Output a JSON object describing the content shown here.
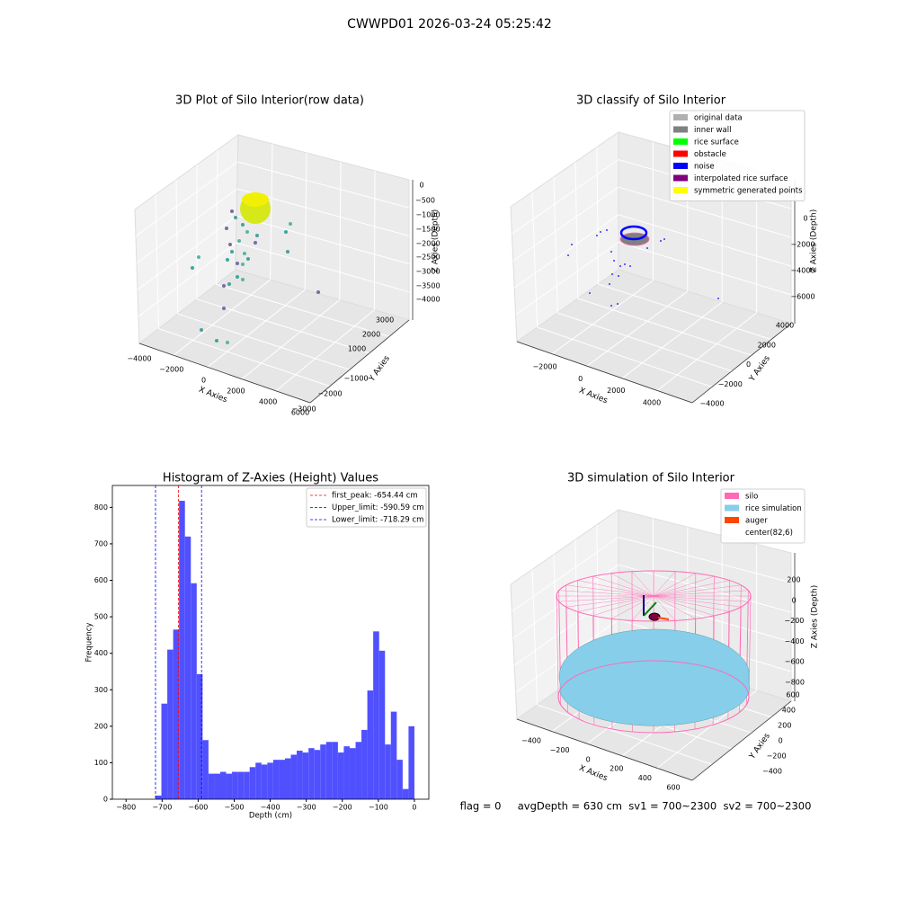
{
  "title": "CWWPD01 2026-03-24 05:25:42",
  "plot3d_raw": {
    "title": "3D Plot of Silo Interior(row data)",
    "xlabel": "X Axies",
    "ylabel": "Y Axies",
    "zlabel": "Z Axies (Depth)",
    "xticks": [
      "−4000",
      "−2000",
      "0",
      "2000",
      "4000",
      "6000"
    ],
    "yticks": [
      "−3000",
      "−2000",
      "−1000",
      "1000",
      "2000",
      "3000"
    ],
    "zticks": [
      "0",
      "−500",
      "−1000",
      "−1500",
      "−2000",
      "−2500",
      "−3000",
      "−3500",
      "−4000"
    ]
  },
  "plot3d_classify": {
    "title": "3D classify of Silo Interior",
    "xlabel": "X Axies",
    "ylabel": "Y Axies",
    "zlabel": "Z Axies (Depth)",
    "xticks": [
      "−2000",
      "0",
      "2000",
      "4000"
    ],
    "yticks": [
      "−4000",
      "−2000",
      "0",
      "2000",
      "4000"
    ],
    "zticks": [
      "0",
      "−2000",
      "−4000",
      "−6000"
    ],
    "legend": [
      {
        "name": "original data",
        "color": "#b0b0b0"
      },
      {
        "name": "inner wall",
        "color": "#808080"
      },
      {
        "name": "rice surface",
        "color": "#00ff00"
      },
      {
        "name": "obstacle",
        "color": "#ff0000"
      },
      {
        "name": "noise",
        "color": "#0000ff"
      },
      {
        "name": "interpolated rice surface",
        "color": "#800080"
      },
      {
        "name": "symmetric generated points",
        "color": "#ffff00"
      }
    ]
  },
  "chart_data": {
    "type": "histogram",
    "title": "Histogram of Z-Axies (Height) Values",
    "xlabel": "Depth (cm)",
    "ylabel": "Frequency",
    "color": "#5050ff",
    "bins": [
      -718.3,
      -702.0,
      -685.6,
      -669.3,
      -653.0,
      -636.7,
      -620.3,
      -604.0,
      -587.7,
      -571.4,
      -555.0,
      -538.7,
      -522.4,
      -506.1,
      -489.7,
      -473.4,
      -457.1,
      -440.8,
      -424.4,
      -408.1,
      -391.8,
      -375.5,
      -359.1,
      -342.8,
      -326.5,
      -310.2,
      -293.8,
      -277.5,
      -261.2,
      -244.9,
      -228.5,
      -212.2,
      -195.9,
      -179.6,
      -163.2,
      -146.9,
      -130.6,
      -114.3,
      -97.9,
      -81.6,
      -65.3,
      -49.0,
      -32.6,
      -16.3,
      0
    ],
    "values": [
      10,
      262,
      410,
      465,
      818,
      720,
      592,
      343,
      162,
      70,
      70,
      75,
      70,
      75,
      75,
      75,
      88,
      100,
      95,
      100,
      108,
      108,
      112,
      122,
      133,
      128,
      140,
      135,
      150,
      157,
      157,
      128,
      145,
      140,
      157,
      190,
      298,
      460,
      407,
      150,
      240,
      108,
      28,
      200
    ],
    "reference_lines": [
      {
        "name": "first_peak: -654.44 cm",
        "value": -654.44,
        "color": "#ff0000"
      },
      {
        "name": "Upper_limit: -590.59 cm",
        "value": -590.59,
        "color": "#0000ff"
      },
      {
        "name": "Lower_limit: -718.29 cm",
        "value": -718.29,
        "color": "#0000ff"
      }
    ],
    "xlim": [
      -838,
      40
    ],
    "ylim": [
      0,
      860
    ],
    "xticks": [
      {
        "value": -800,
        "label": "−800"
      },
      {
        "value": -700,
        "label": "−700"
      },
      {
        "value": -600,
        "label": "−600"
      },
      {
        "value": -500,
        "label": "−500"
      },
      {
        "value": -400,
        "label": "−400"
      },
      {
        "value": -300,
        "label": "−300"
      },
      {
        "value": -200,
        "label": "−200"
      },
      {
        "value": -100,
        "label": "−100"
      },
      0
    ],
    "yticks": [
      0,
      100,
      200,
      300,
      400,
      500,
      600,
      700,
      800
    ],
    "legend": "upper right"
  },
  "plot3d_sim": {
    "title": "3D simulation of Silo Interior",
    "xlabel": "X Axies",
    "ylabel": "Y Axies",
    "zlabel": "Z Axies (Depth)",
    "xticks": [
      "−400",
      "−200",
      "0",
      "200",
      "400",
      "600"
    ],
    "yticks": [
      "−400",
      "−200",
      "0",
      "200",
      "400",
      "600"
    ],
    "zticks": [
      "200",
      "0",
      "−200",
      "−400",
      "−600",
      "−800"
    ],
    "legend": [
      {
        "name": "silo",
        "color": "#ff69b4"
      },
      {
        "name": "rice simulation",
        "color": "#87ceeb"
      },
      {
        "name": "auger",
        "color": "#ff4500"
      },
      {
        "name": "center(82,6)"
      }
    ]
  },
  "footer": "flag = 0     avgDepth = 630 cm  sv1 = 700~2300  sv2 = 700~2300"
}
